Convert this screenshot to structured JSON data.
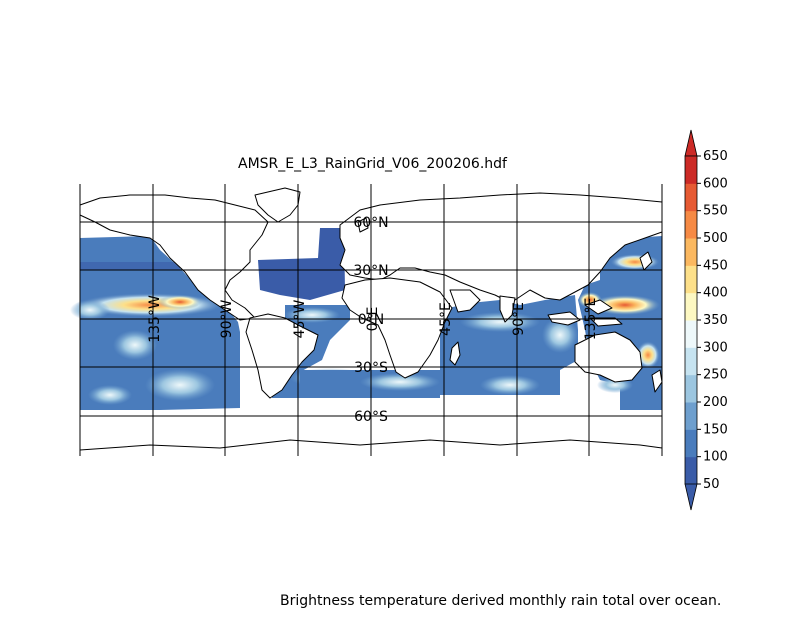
{
  "title": "AMSR_E_L3_RainGrid_V06_200206.hdf",
  "caption": "Brightness temperature derived monthly rain total over ocean.",
  "map": {
    "lon_range": [
      -180,
      180
    ],
    "lat_range": [
      -90,
      90
    ],
    "data_lat_range": [
      -60,
      50
    ],
    "meridians": [
      "135°W",
      "90°W",
      "45°W",
      "0°E",
      "45°E",
      "90°E",
      "135°E"
    ],
    "parallels": [
      "60°N",
      "30°N",
      "0°N",
      "30°S",
      "60°S"
    ],
    "grid": true
  },
  "colorbar": {
    "ticks": [
      "50",
      "100",
      "150",
      "200",
      "250",
      "300",
      "350",
      "400",
      "450",
      "500",
      "550",
      "600",
      "650"
    ],
    "colors": [
      "#3a5ca8",
      "#4a7cbc",
      "#6e9fce",
      "#9cc6e0",
      "#c6e3f0",
      "#eef8fa",
      "#fdf8c2",
      "#fde08a",
      "#fbb860",
      "#f68a45",
      "#e65a33",
      "#cc2a26"
    ],
    "extend": "both"
  },
  "regions": {
    "pacific_east": {
      "x": [
        80,
        240
      ],
      "y": [
        235,
        410
      ]
    },
    "atlantic": {
      "x": [
        255,
        345
      ],
      "y": [
        225,
        400
      ]
    },
    "indian": {
      "x": [
        440,
        575
      ],
      "y": [
        300,
        395
      ]
    },
    "pacific_west": {
      "x": [
        578,
        662
      ],
      "y": [
        235,
        405
      ]
    }
  }
}
